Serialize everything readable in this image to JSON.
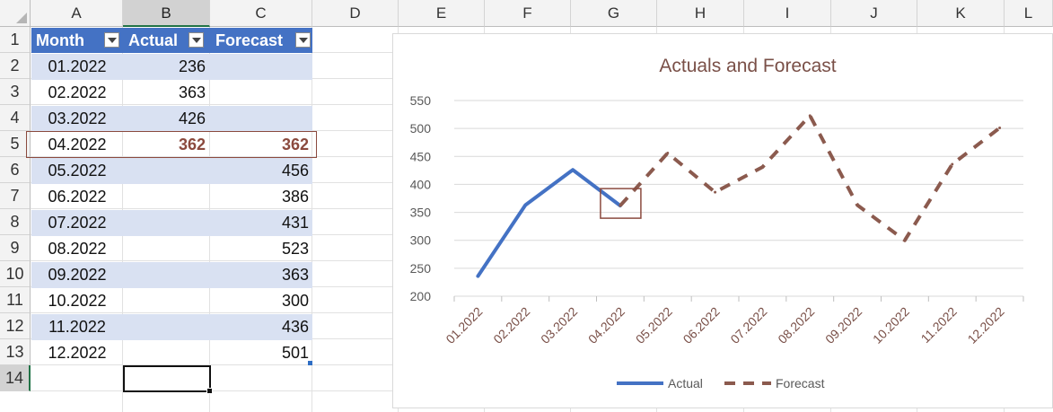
{
  "columns": [
    "A",
    "B",
    "C",
    "D",
    "E",
    "F",
    "G",
    "H",
    "I",
    "J",
    "K",
    "L"
  ],
  "selected_column": "B",
  "rows": [
    "1",
    "2",
    "3",
    "4",
    "5",
    "6",
    "7",
    "8",
    "9",
    "10",
    "11",
    "12",
    "13",
    "14"
  ],
  "selected_row": "14",
  "table": {
    "headers": [
      "Month",
      "Actual",
      "Forecast"
    ],
    "rows": [
      {
        "month": "01.2022",
        "actual": "236",
        "forecast": ""
      },
      {
        "month": "02.2022",
        "actual": "363",
        "forecast": ""
      },
      {
        "month": "03.2022",
        "actual": "426",
        "forecast": ""
      },
      {
        "month": "04.2022",
        "actual": "362",
        "forecast": "362"
      },
      {
        "month": "05.2022",
        "actual": "",
        "forecast": "456"
      },
      {
        "month": "06.2022",
        "actual": "",
        "forecast": "386"
      },
      {
        "month": "07.2022",
        "actual": "",
        "forecast": "431"
      },
      {
        "month": "08.2022",
        "actual": "",
        "forecast": "523"
      },
      {
        "month": "09.2022",
        "actual": "",
        "forecast": "363"
      },
      {
        "month": "10.2022",
        "actual": "",
        "forecast": "300"
      },
      {
        "month": "11.2022",
        "actual": "",
        "forecast": "436"
      },
      {
        "month": "12.2022",
        "actual": "",
        "forecast": "501"
      }
    ]
  },
  "colors": {
    "header_fill": "#4472c4",
    "band_fill": "#d9e1f2",
    "highlight": "#8b4a3e",
    "actual_line": "#4472c4",
    "forecast_line": "#8b5a4e",
    "selection": "#217346"
  },
  "chart_data": {
    "type": "line",
    "title": "Actuals and Forecast",
    "categories": [
      "01.2022",
      "02.2022",
      "03.2022",
      "04.2022",
      "05.2022",
      "06.2022",
      "07.2022",
      "08.2022",
      "09.2022",
      "10.2022",
      "11.2022",
      "12.2022"
    ],
    "series": [
      {
        "name": "Actual",
        "style": "solid",
        "color": "#4472c4",
        "values": [
          236,
          363,
          426,
          362,
          null,
          null,
          null,
          null,
          null,
          null,
          null,
          null
        ]
      },
      {
        "name": "Forecast",
        "style": "dashed",
        "color": "#8b5a4e",
        "values": [
          null,
          null,
          null,
          362,
          456,
          386,
          431,
          523,
          363,
          300,
          436,
          501
        ]
      }
    ],
    "ylim": [
      200,
      550
    ],
    "yticks": [
      "200",
      "250",
      "300",
      "350",
      "400",
      "450",
      "500",
      "550"
    ],
    "grid": true,
    "legend": "bottom",
    "highlighted_category": "04.2022"
  }
}
